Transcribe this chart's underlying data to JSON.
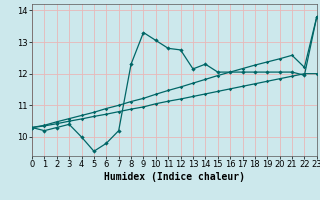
{
  "title": "",
  "xlabel": "Humidex (Indice chaleur)",
  "background_color": "#cce8ec",
  "grid_color": "#e8b8b8",
  "line_color": "#006666",
  "x_data": [
    0,
    1,
    2,
    3,
    4,
    5,
    6,
    7,
    8,
    9,
    10,
    11,
    12,
    13,
    14,
    15,
    16,
    17,
    18,
    19,
    20,
    21,
    22,
    23
  ],
  "y_main": [
    10.3,
    10.2,
    10.3,
    10.4,
    10.0,
    9.55,
    9.8,
    10.2,
    12.3,
    13.3,
    13.05,
    12.8,
    12.75,
    12.15,
    12.3,
    12.05,
    12.05,
    12.05,
    12.05,
    12.05,
    12.05,
    12.05,
    11.95,
    13.8
  ],
  "y_trend1": [
    10.3,
    10.35,
    10.42,
    10.5,
    10.57,
    10.65,
    10.72,
    10.8,
    10.88,
    10.95,
    11.05,
    11.13,
    11.2,
    11.28,
    11.36,
    11.44,
    11.52,
    11.6,
    11.68,
    11.76,
    11.84,
    11.92,
    12.0,
    12.0
  ],
  "y_trend2": [
    10.3,
    10.37,
    10.48,
    10.58,
    10.68,
    10.78,
    10.9,
    11.0,
    11.12,
    11.22,
    11.35,
    11.47,
    11.58,
    11.7,
    11.82,
    11.94,
    12.05,
    12.16,
    12.27,
    12.37,
    12.47,
    12.58,
    12.2,
    13.8
  ],
  "ylim": [
    9.4,
    14.2
  ],
  "xlim": [
    0,
    23
  ],
  "yticks": [
    10,
    11,
    12,
    13,
    14
  ],
  "xticks": [
    0,
    1,
    2,
    3,
    4,
    5,
    6,
    7,
    8,
    9,
    10,
    11,
    12,
    13,
    14,
    15,
    16,
    17,
    18,
    19,
    20,
    21,
    22,
    23
  ],
  "xlabel_fontsize": 7,
  "tick_fontsize": 6
}
